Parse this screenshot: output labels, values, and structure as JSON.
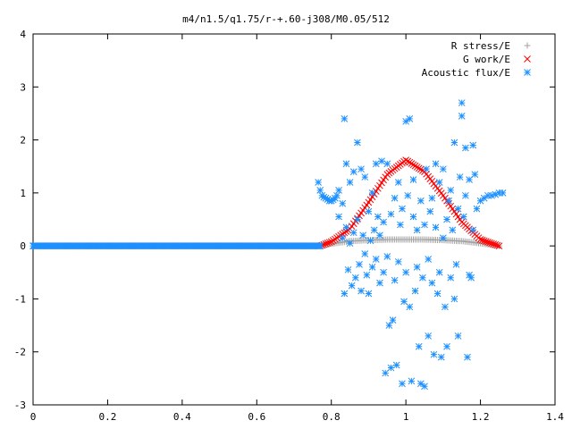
{
  "chart_data": {
    "type": "scatter",
    "title": "m4/n1.5/q1.75/r-+.60-j308/M0.05/512",
    "xlabel": "",
    "ylabel": "",
    "xlim": [
      0,
      1.4
    ],
    "ylim": [
      -3,
      4
    ],
    "xticks": [
      "0",
      "0.2",
      "0.4",
      "0.6",
      "0.8",
      "1",
      "1.2",
      "1.4"
    ],
    "yticks": [
      "-3",
      "-2",
      "-1",
      "0",
      "1",
      "2",
      "3",
      "4"
    ],
    "grid": false,
    "legend_position": "top-right",
    "series": [
      {
        "name": "R stress/E",
        "marker": "+",
        "color": "#a0a0a0",
        "description": "smooth bump, ~0 at x=0.77, peak ~0.12 near x=1.0, ~0 at x=1.26",
        "sample_x": [
          0.77,
          0.8,
          0.85,
          0.9,
          0.95,
          1.0,
          1.05,
          1.1,
          1.15,
          1.2,
          1.25
        ],
        "sample_y": [
          0.0,
          0.04,
          0.09,
          0.11,
          0.12,
          0.12,
          0.12,
          0.11,
          0.09,
          0.05,
          0.0
        ]
      },
      {
        "name": "G work/E",
        "marker": "x",
        "color": "#ff0000",
        "description": "bell curve, ~0 at x=0.77, peak ~1.62 at x=1.0, ~0 at x=1.26",
        "sample_x": [
          0.77,
          0.8,
          0.85,
          0.9,
          0.95,
          1.0,
          1.05,
          1.1,
          1.15,
          1.2,
          1.25
        ],
        "sample_y": [
          0.0,
          0.08,
          0.32,
          0.82,
          1.35,
          1.62,
          1.4,
          0.95,
          0.45,
          0.12,
          0.0
        ]
      },
      {
        "name": "Acoustic flux/E",
        "marker": "*",
        "color": "#1e90ff",
        "description": "zero for x<0.77; scattered between -2.7 and 2.7 for x in [0.77, 1.26]",
        "flat_segment": {
          "x_from": 0.0,
          "x_to": 0.77,
          "y": 0.0
        },
        "x": [
          0.765,
          0.77,
          0.775,
          0.78,
          0.785,
          0.79,
          0.795,
          0.8,
          0.805,
          0.81,
          0.815,
          0.82,
          0.82,
          0.83,
          0.83,
          0.835,
          0.835,
          0.84,
          0.84,
          0.845,
          0.85,
          0.85,
          0.855,
          0.86,
          0.86,
          0.865,
          0.87,
          0.87,
          0.875,
          0.88,
          0.88,
          0.885,
          0.89,
          0.89,
          0.895,
          0.9,
          0.9,
          0.905,
          0.91,
          0.91,
          0.915,
          0.92,
          0.92,
          0.925,
          0.93,
          0.93,
          0.935,
          0.94,
          0.94,
          0.945,
          0.95,
          0.95,
          0.955,
          0.96,
          0.96,
          0.965,
          0.97,
          0.97,
          0.975,
          0.98,
          0.98,
          0.985,
          0.99,
          0.99,
          0.995,
          1.0,
          1.0,
          1.005,
          1.01,
          1.01,
          1.015,
          1.02,
          1.02,
          1.025,
          1.03,
          1.03,
          1.035,
          1.04,
          1.04,
          1.045,
          1.05,
          1.05,
          1.055,
          1.06,
          1.06,
          1.065,
          1.07,
          1.07,
          1.075,
          1.08,
          1.08,
          1.085,
          1.09,
          1.09,
          1.095,
          1.1,
          1.1,
          1.105,
          1.11,
          1.11,
          1.115,
          1.12,
          1.12,
          1.125,
          1.13,
          1.13,
          1.135,
          1.14,
          1.14,
          1.145,
          1.15,
          1.15,
          1.155,
          1.16,
          1.16,
          1.165,
          1.17,
          1.17,
          1.175,
          1.18,
          1.18,
          1.185,
          1.19,
          1.2,
          1.21,
          1.22,
          1.23,
          1.24,
          1.25,
          1.26
        ],
        "y": [
          1.2,
          1.05,
          0.95,
          0.92,
          0.9,
          0.88,
          0.85,
          0.85,
          0.87,
          0.9,
          0.95,
          1.05,
          0.55,
          0.8,
          0.15,
          2.4,
          -0.9,
          1.55,
          0.35,
          -0.45,
          1.2,
          0.05,
          -0.75,
          1.4,
          0.25,
          -0.6,
          1.95,
          0.5,
          -0.35,
          1.45,
          -0.85,
          0.2,
          1.3,
          -0.15,
          -0.55,
          0.65,
          -0.9,
          0.1,
          1.0,
          -0.4,
          0.3,
          1.55,
          -0.25,
          0.55,
          -0.7,
          0.2,
          1.6,
          -0.5,
          0.45,
          -2.4,
          1.55,
          -0.2,
          -1.5,
          -2.3,
          0.6,
          -1.4,
          0.9,
          -0.65,
          -2.25,
          1.2,
          -0.3,
          0.4,
          -2.6,
          0.7,
          -1.05,
          2.35,
          -0.5,
          0.95,
          2.4,
          -1.15,
          -2.55,
          0.55,
          1.25,
          -0.85,
          -0.4,
          0.3,
          -1.9,
          -2.6,
          0.85,
          -0.6,
          -2.65,
          0.4,
          1.45,
          -1.7,
          -0.25,
          0.65,
          0.9,
          -0.7,
          -2.05,
          1.55,
          0.35,
          -0.9,
          -0.5,
          1.2,
          -2.1,
          0.15,
          1.45,
          -1.15,
          -1.9,
          0.5,
          0.85,
          -0.6,
          1.05,
          0.3,
          -1.0,
          1.95,
          -0.35,
          0.7,
          -1.7,
          1.3,
          2.45,
          2.7,
          0.55,
          1.85,
          0.95,
          -2.1,
          1.25,
          -0.55,
          -0.6,
          1.9,
          0.3,
          1.35,
          0.7,
          0.85,
          0.9,
          0.95,
          0.95,
          0.97,
          1.0,
          1.0
        ]
      }
    ]
  }
}
